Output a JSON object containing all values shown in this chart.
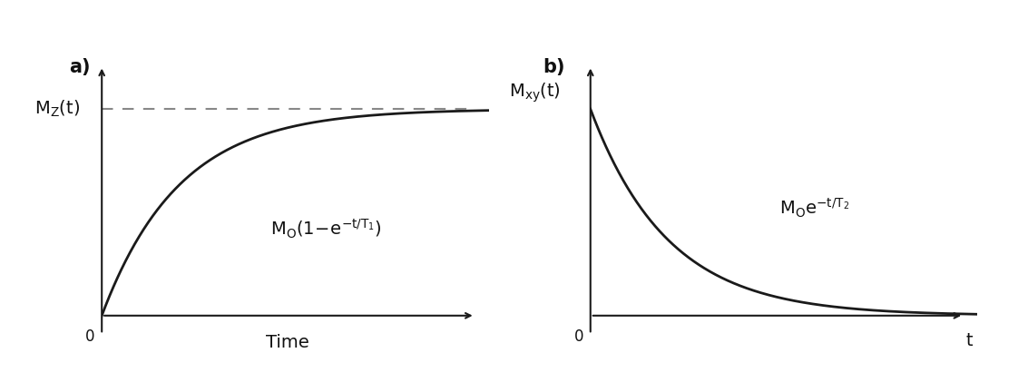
{
  "bg_color": "#ffffff",
  "panel_a": {
    "label": "a)",
    "xlabel": "Time",
    "T1": 1.0,
    "x_max": 5,
    "xlim": [
      0,
      5
    ],
    "ylim": [
      -0.18,
      1.3
    ]
  },
  "panel_b": {
    "label": "b)",
    "xlabel": "t",
    "T2": 1.0,
    "x_max": 5,
    "xlim": [
      0,
      5
    ],
    "ylim": [
      -0.18,
      1.3
    ]
  },
  "line_color": "#1a1a1a",
  "dashed_color": "#888888",
  "text_color": "#111111",
  "linewidth": 2.0,
  "arrow_linewidth": 1.5,
  "fontsize_label": 14,
  "fontsize_tick": 12,
  "fontsize_formula": 13,
  "fontsize_panel": 15
}
